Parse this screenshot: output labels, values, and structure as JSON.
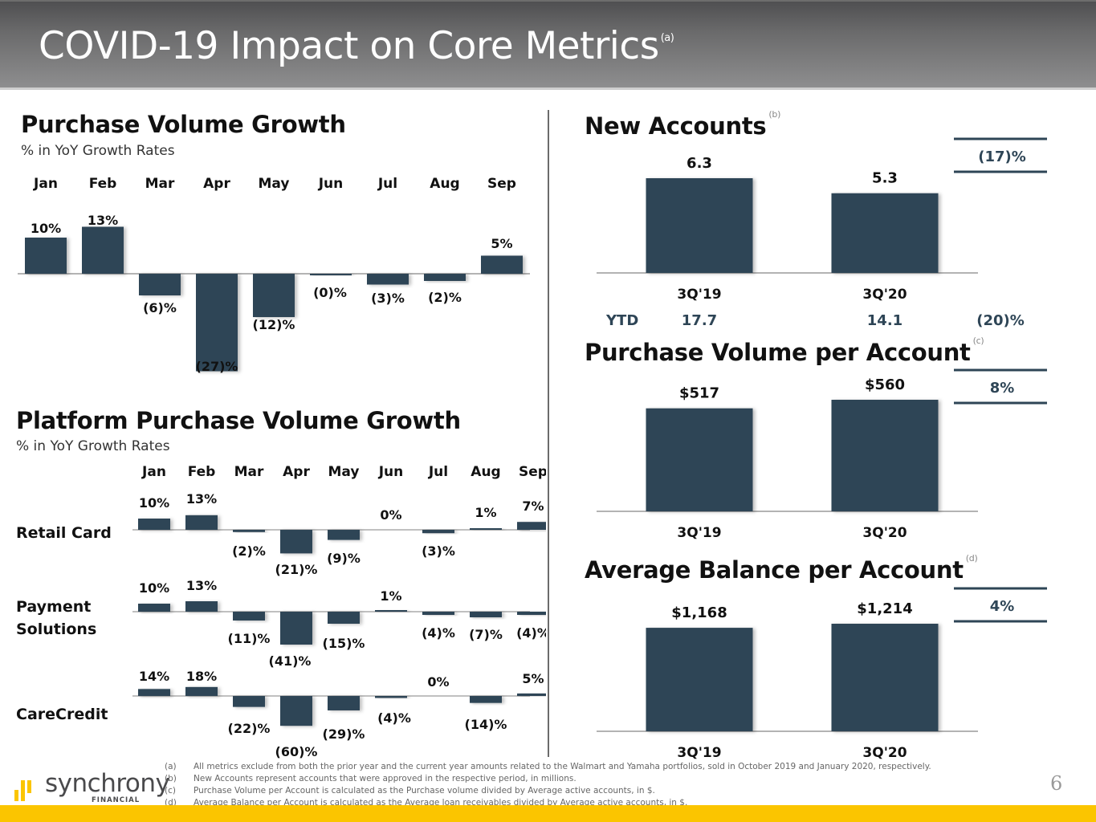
{
  "header": {
    "title": "COVID-19 Impact on Core Metrics",
    "footnote_ref": "(a)"
  },
  "purchase_volume_growth": {
    "title": "Purchase Volume Growth",
    "subtitle": "% in YoY Growth Rates"
  },
  "platform_growth": {
    "title": "Platform Purchase Volume Growth",
    "subtitle": "% in YoY Growth Rates"
  },
  "new_accounts": {
    "title": "New Accounts",
    "footnote_ref": "(b)",
    "change": "(17)%",
    "ytd_label": "YTD",
    "ytd_values": [
      "17.7",
      "14.1"
    ],
    "ytd_change": "(20)%"
  },
  "pv_per_account": {
    "title": "Purchase Volume per Account",
    "footnote_ref": "(c)",
    "change": "8%"
  },
  "avg_balance": {
    "title": "Average Balance per Account",
    "footnote_ref": "(d)",
    "change": "4%"
  },
  "chart_data": [
    {
      "id": "purchase-volume-growth",
      "type": "bar",
      "title": "Purchase Volume Growth",
      "subtitle": "% in YoY Growth Rates",
      "categories": [
        "Jan",
        "Feb",
        "Mar",
        "Apr",
        "May",
        "Jun",
        "Jul",
        "Aug",
        "Sep"
      ],
      "values": [
        10,
        13,
        -6,
        -27,
        -12,
        -0.3,
        -3,
        -2,
        5
      ],
      "labels": [
        "10%",
        "13%",
        "(6)%",
        "(27)%",
        "(12)%",
        "(0)%",
        "(3)%",
        "(2)%",
        "5%"
      ],
      "xlabel": "",
      "ylabel": "",
      "grid": false
    },
    {
      "id": "platform-purchase-volume-growth",
      "type": "bar",
      "title": "Platform Purchase Volume Growth",
      "subtitle": "% in YoY Growth Rates",
      "categories": [
        "Jan",
        "Feb",
        "Mar",
        "Apr",
        "May",
        "Jun",
        "Jul",
        "Aug",
        "Sep"
      ],
      "series": [
        {
          "name": "Retail Card",
          "values": [
            10,
            13,
            -2,
            -21,
            -9,
            0,
            -3,
            1,
            7
          ],
          "labels": [
            "10%",
            "13%",
            "(2)%",
            "(21)%",
            "(9)%",
            "0%",
            "(3)%",
            "1%",
            "7%"
          ]
        },
        {
          "name": "Payment Solutions",
          "values": [
            10,
            13,
            -11,
            -41,
            -15,
            1,
            -4,
            -7,
            -4
          ],
          "labels": [
            "10%",
            "13%",
            "(11)%",
            "(41)%",
            "(15)%",
            "1%",
            "(4)%",
            "(7)%",
            "(4)%"
          ]
        },
        {
          "name": "CareCredit",
          "values": [
            14,
            18,
            -22,
            -60,
            -29,
            -4,
            0,
            -14,
            5
          ],
          "labels": [
            "14%",
            "18%",
            "(22)%",
            "(60)%",
            "(29)%",
            "(4)%",
            "0%",
            "(14)%",
            "5%"
          ]
        }
      ],
      "xlabel": "",
      "ylabel": "",
      "grid": false
    },
    {
      "id": "new-accounts",
      "type": "bar",
      "title": "New Accounts",
      "categories": [
        "3Q'19",
        "3Q'20"
      ],
      "values": [
        6.3,
        5.3
      ],
      "labels": [
        "6.3",
        "5.3"
      ],
      "annotation": "(17)%",
      "units": "millions"
    },
    {
      "id": "purchase-volume-per-account",
      "type": "bar",
      "title": "Purchase Volume per Account",
      "categories": [
        "3Q'19",
        "3Q'20"
      ],
      "values": [
        517,
        560
      ],
      "labels": [
        "$517",
        "$560"
      ],
      "annotation": "8%",
      "units": "$"
    },
    {
      "id": "average-balance-per-account",
      "type": "bar",
      "title": "Average Balance per Account",
      "categories": [
        "3Q'19",
        "3Q'20"
      ],
      "values": [
        1168,
        1214
      ],
      "labels": [
        "$1,168",
        "$1,214"
      ],
      "annotation": "4%",
      "units": "$"
    }
  ],
  "footnotes": [
    {
      "key": "(a)",
      "text": "All metrics exclude from both the prior year and the current year amounts related to the Walmart and Yamaha portfolios, sold in October 2019 and January 2020, respectively."
    },
    {
      "key": "(b)",
      "text": "New Accounts represent accounts that were approved in the respective period, in millions."
    },
    {
      "key": "(c)",
      "text": "Purchase Volume per Account is calculated as the Purchase volume divided by Average active accounts, in $."
    },
    {
      "key": "(d)",
      "text": "Average Balance per Account is calculated as the Average loan receivables divided by Average active accounts, in $."
    }
  ],
  "logo": {
    "name": "synchrony",
    "sub": "FINANCIAL"
  },
  "page_number": "6",
  "colors": {
    "bar": "#2e4556",
    "accent_yellow": "#fbc500",
    "header_top": "#4f4f51",
    "header_bottom": "#8e8e8f"
  }
}
